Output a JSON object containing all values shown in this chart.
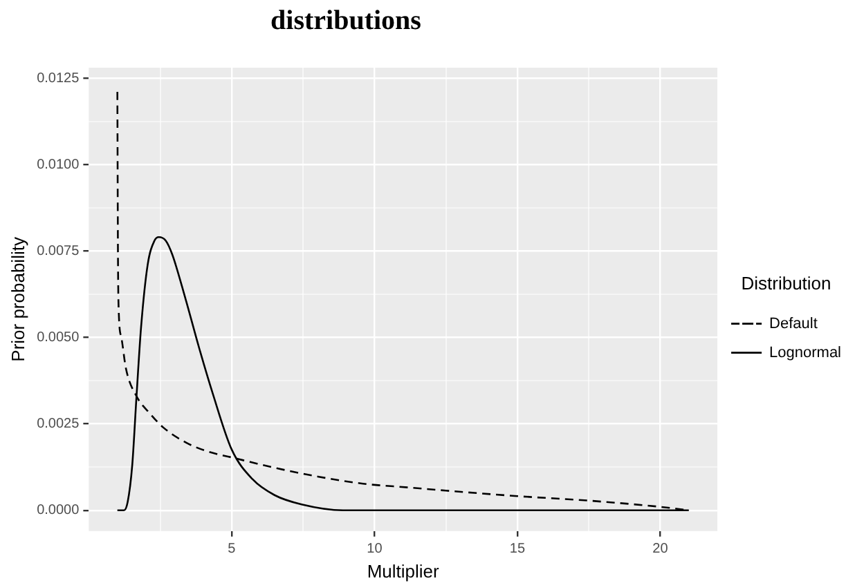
{
  "chart_data": {
    "type": "line",
    "title": "distributions",
    "xlabel": "Multiplier",
    "ylabel": "Prior probability",
    "legend_title": "Distribution",
    "legend": "right",
    "grid": true,
    "marker": "none",
    "xlim": [
      0,
      22
    ],
    "ylim": [
      -0.0006,
      0.0128
    ],
    "xticks": [
      {
        "value": 2.5,
        "label": null
      },
      5,
      {
        "value": 7.5,
        "label": null
      },
      10,
      {
        "value": 12.5,
        "label": null
      },
      15,
      {
        "value": 17.5,
        "label": null
      },
      20
    ],
    "yticks": [
      {
        "value": 0,
        "label": "0.0000"
      },
      {
        "value": 0.00125,
        "label": null
      },
      {
        "value": 0.0025,
        "label": "0.0025"
      },
      {
        "value": 0.00375,
        "label": null
      },
      {
        "value": 0.005,
        "label": "0.0050"
      },
      {
        "value": 0.00625,
        "label": null
      },
      {
        "value": 0.0075,
        "label": "0.0075"
      },
      {
        "value": 0.00875,
        "label": null
      },
      {
        "value": 0.01,
        "label": "0.0100"
      },
      {
        "value": 0.01125,
        "label": null
      },
      {
        "value": 0.0125,
        "label": "0.0125"
      }
    ],
    "series": [
      {
        "name": "Default",
        "color": "#000000",
        "line_style": "dashed",
        "x": [
          1.0,
          1.02,
          1.05,
          1.14,
          1.3,
          1.67,
          2.14,
          2.6,
          3.4,
          4.17,
          5,
          6.5,
          8.05,
          9.6,
          11.2,
          12.5,
          15,
          17.5,
          20,
          21
        ],
        "values": [
          0.0121,
          0.0075,
          0.0057,
          0.005,
          0.0041,
          0.0033,
          0.0028,
          0.0024,
          0.00196,
          0.0017,
          0.00153,
          0.00123,
          0.00097,
          0.00077,
          0.00066,
          0.00057,
          0.00041,
          0.00028,
          0.0001,
          0.0
        ]
      },
      {
        "name": "Lognormal",
        "color": "#000000",
        "line_style": "solid",
        "x": [
          1.0,
          1.23,
          1.36,
          1.52,
          1.67,
          1.83,
          2.06,
          2.3,
          2.45,
          2.69,
          2.92,
          3.39,
          3.86,
          4.33,
          5,
          5.73,
          6.5,
          7.45,
          8.9,
          10,
          15,
          21
        ],
        "values": [
          0.0,
          0.0,
          0.00024,
          0.0013,
          0.0033,
          0.0053,
          0.0071,
          0.0078,
          0.0079,
          0.0078,
          0.0074,
          0.0061,
          0.0047,
          0.0034,
          0.00176,
          0.0009,
          0.00044,
          0.00017,
          0.0,
          0.0,
          0.0,
          0.0
        ]
      }
    ]
  }
}
